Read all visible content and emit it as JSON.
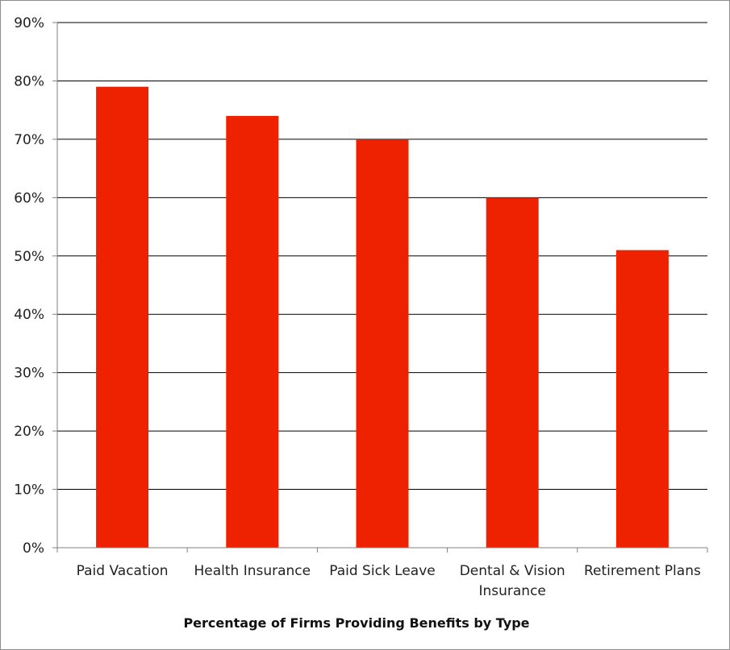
{
  "chart_data": {
    "type": "bar",
    "title": "Percentage of Firms Providing Benefits by Type",
    "categories": [
      "Paid Vacation",
      "Health Insurance",
      "Paid Sick Leave",
      "Dental & Vision Insurance",
      "Retirement Plans"
    ],
    "category_lines": [
      [
        "Paid Vacation"
      ],
      [
        "Health Insurance"
      ],
      [
        "Paid Sick Leave"
      ],
      [
        "Dental & Vision",
        "Insurance"
      ],
      [
        "Retirement Plans"
      ]
    ],
    "values": [
      79,
      74,
      70,
      60,
      51
    ],
    "ylim": [
      0,
      90
    ],
    "yticks": [
      0,
      10,
      20,
      30,
      40,
      50,
      60,
      70,
      80,
      90
    ],
    "ytick_labels": [
      "0%",
      "10%",
      "20%",
      "30%",
      "40%",
      "50%",
      "60%",
      "70%",
      "80%",
      "90%"
    ],
    "xlabel": "",
    "ylabel": "",
    "grid": true,
    "legend": "none",
    "bar_color": "#ee2200"
  }
}
